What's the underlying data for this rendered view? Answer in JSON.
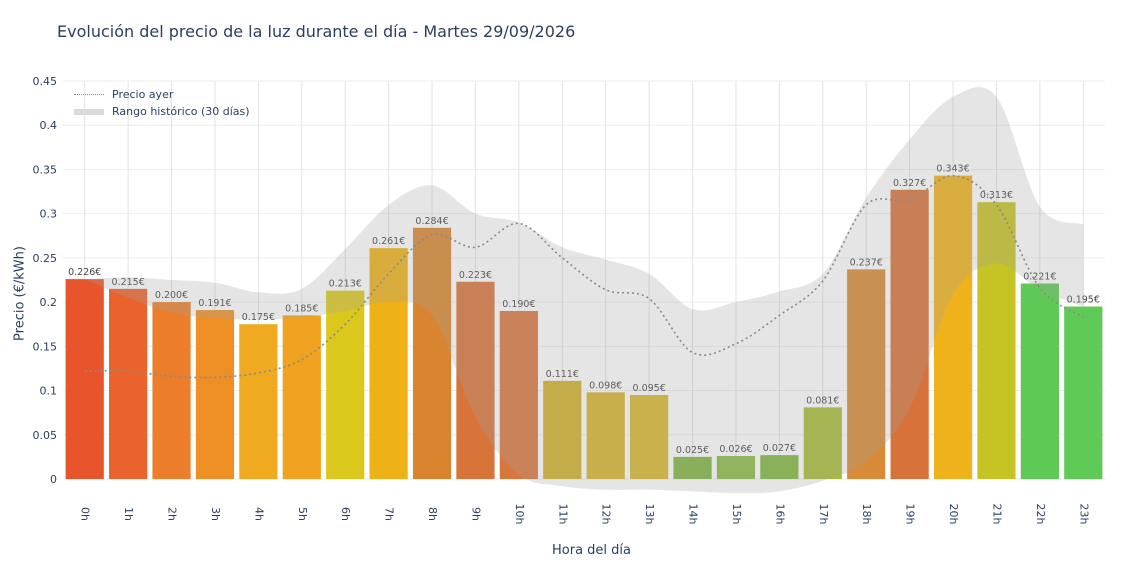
{
  "chart_data": {
    "type": "bar",
    "title": "Evolución del precio de la luz durante el día - Martes 29/09/2026",
    "xlabel": "Hora del día",
    "ylabel": "Precio (€/kWh)",
    "ylim": [
      0,
      0.45
    ],
    "yticks": [
      "0",
      "0.05",
      "0.1",
      "0.15",
      "0.2",
      "0.25",
      "0.3",
      "0.35",
      "0.4",
      "0.45"
    ],
    "ytick_values": [
      0,
      0.05,
      0.1,
      0.15,
      0.2,
      0.25,
      0.3,
      0.35,
      0.4,
      0.45
    ],
    "categories": [
      "0h",
      "1h",
      "2h",
      "3h",
      "4h",
      "5h",
      "6h",
      "7h",
      "8h",
      "9h",
      "10h",
      "11h",
      "12h",
      "13h",
      "14h",
      "15h",
      "16h",
      "17h",
      "18h",
      "19h",
      "20h",
      "21h",
      "22h",
      "23h"
    ],
    "values": [
      0.226,
      0.215,
      0.2,
      0.191,
      0.175,
      0.185,
      0.213,
      0.261,
      0.284,
      0.223,
      0.19,
      0.111,
      0.098,
      0.095,
      0.025,
      0.026,
      0.027,
      0.081,
      0.237,
      0.327,
      0.343,
      0.313,
      0.221,
      0.195
    ],
    "value_labels": [
      "0.226€",
      "0.215€",
      "0.200€",
      "0.191€",
      "0.175€",
      "0.185€",
      "0.213€",
      "0.261€",
      "0.284€",
      "0.223€",
      "0.190€",
      "0.111€",
      "0.098€",
      "0.095€",
      "0.025€",
      "0.026€",
      "0.027€",
      "0.081€",
      "0.237€",
      "0.327€",
      "0.343€",
      "0.313€",
      "0.221€",
      "0.195€"
    ],
    "bar_colors": [
      "#e8552c",
      "#ea632d",
      "#ec7d2a",
      "#ee8f26",
      "#efaa1f",
      "#eea21f",
      "#dcc81c",
      "#efb216",
      "#d9852f",
      "#d8743a",
      "#d9763d",
      "#d3b02a",
      "#d8b52c",
      "#d8b82a",
      "#82b541",
      "#8cba44",
      "#7fb83f",
      "#a9bc35",
      "#d98a36",
      "#d7723a",
      "#efb21a",
      "#c6c324",
      "#5ec954",
      "#5fca56"
    ],
    "series": [
      {
        "name": "Precio ayer",
        "values": [
          0.122,
          0.122,
          0.116,
          0.115,
          0.12,
          0.135,
          0.175,
          0.232,
          0.276,
          0.262,
          0.289,
          0.25,
          0.214,
          0.204,
          0.143,
          0.153,
          0.185,
          0.224,
          0.31,
          0.315,
          0.343,
          0.31,
          0.216,
          0.183
        ]
      },
      {
        "name": "Rango histórico (30 días)",
        "upper": [
          0.226,
          0.228,
          0.225,
          0.222,
          0.211,
          0.215,
          0.26,
          0.31,
          0.332,
          0.3,
          0.29,
          0.262,
          0.248,
          0.232,
          0.192,
          0.2,
          0.212,
          0.232,
          0.318,
          0.384,
          0.432,
          0.432,
          0.308,
          0.288
        ],
        "lower": [
          0.226,
          0.205,
          0.188,
          0.182,
          0.18,
          0.183,
          0.19,
          0.2,
          0.185,
          0.07,
          0.005,
          -0.008,
          -0.012,
          -0.012,
          -0.014,
          -0.016,
          -0.014,
          -0.002,
          0.02,
          0.08,
          0.208,
          0.244,
          0.214,
          0.195
        ]
      }
    ],
    "legend": [
      "Precio ayer",
      "Rango histórico (30 días)"
    ],
    "legend_position": "top-left",
    "grid": true
  }
}
